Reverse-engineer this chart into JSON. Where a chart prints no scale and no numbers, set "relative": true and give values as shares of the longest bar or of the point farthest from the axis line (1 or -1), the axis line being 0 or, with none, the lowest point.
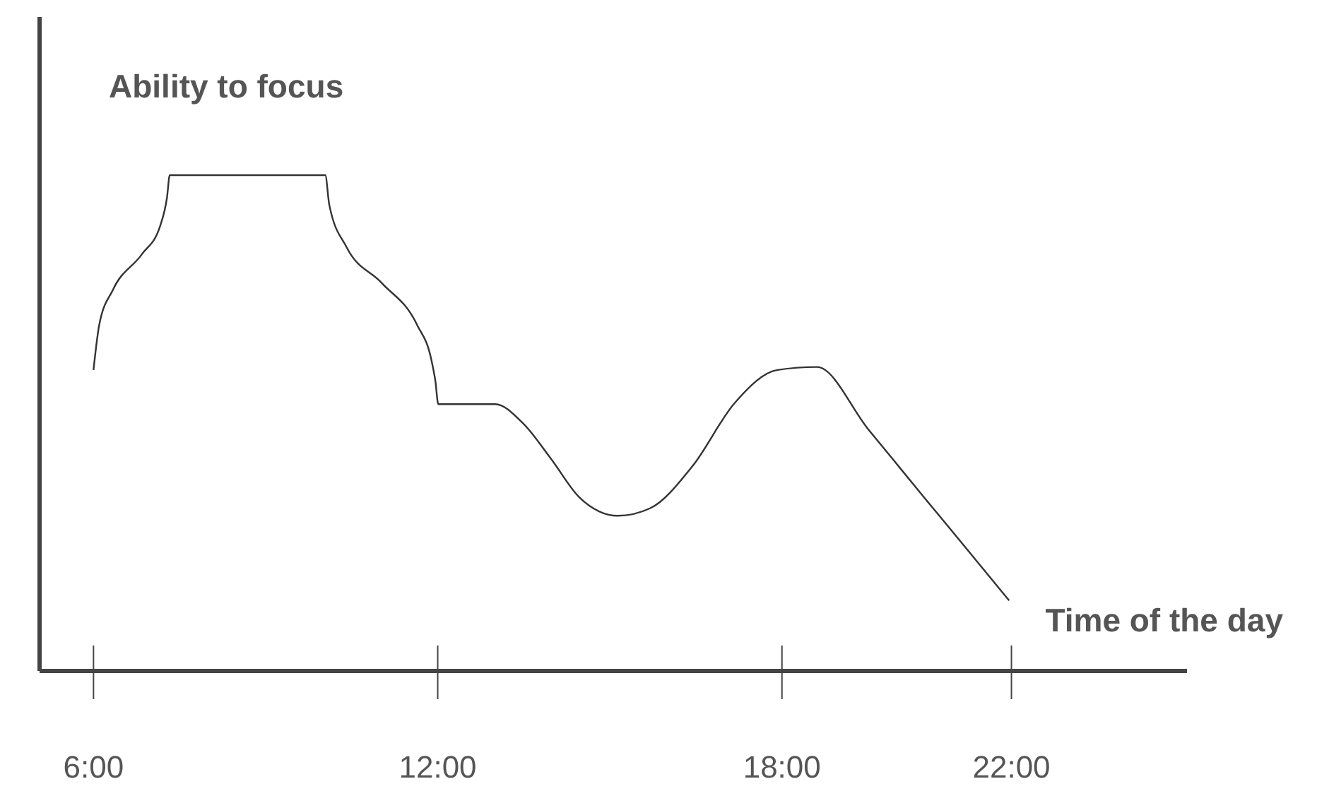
{
  "chart_data": {
    "type": "line",
    "relative": true,
    "ylabel": "Ability to focus",
    "xlabel": "Time of the day",
    "xlim": [
      5.06,
      25.06
    ],
    "xticks": [
      {
        "value": 6,
        "label": "6:00"
      },
      {
        "value": 12,
        "label": "12:00"
      },
      {
        "value": 18,
        "label": "18:00"
      },
      {
        "value": 22,
        "label": "22:00"
      }
    ],
    "tick_labels": "x",
    "grid": false,
    "marker": "none",
    "line_style": "solid",
    "series": [
      {
        "color": "#333333",
        "x": [
          6.0,
          6.1,
          6.34,
          6.84,
          7.16,
          7.28,
          7.33,
          10.04,
          10.11,
          10.41,
          11.02,
          11.64,
          11.89,
          11.96,
          12.01,
          13.0,
          13.49,
          13.98,
          14.47,
          15.14,
          15.7,
          16.44,
          17.18,
          17.92,
          18.61,
          19.5,
          20.5,
          21.2,
          21.96
        ],
        "values": [
          0.607,
          0.698,
          0.769,
          0.84,
          0.897,
          0.954,
          1,
          1,
          0.94,
          0.855,
          0.783,
          0.698,
          0.627,
          0.584,
          0.538,
          0.538,
          0.499,
          0.427,
          0.35,
          0.313,
          0.328,
          0.413,
          0.541,
          0.607,
          0.613,
          0.488,
          0.347,
          0.249,
          0.142
        ]
      }
    ]
  }
}
